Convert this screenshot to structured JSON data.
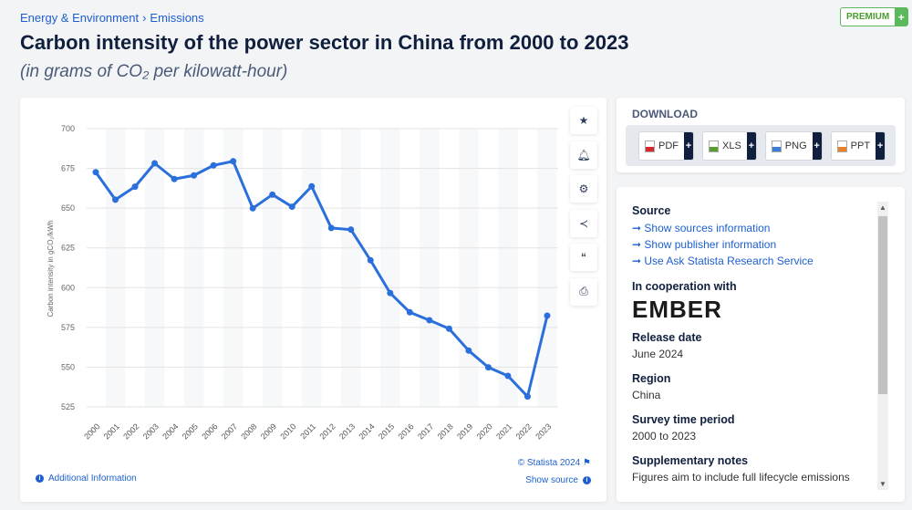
{
  "breadcrumb": [
    "Energy & Environment",
    "Emissions"
  ],
  "premium": {
    "label": "PREMIUM",
    "plus": "+"
  },
  "title": "Carbon intensity of the power sector in China from 2000 to 2023",
  "subtitle": "(in grams of CO₂ per kilowatt-hour)",
  "tools": [
    "star-icon",
    "bell-icon",
    "gear-icon",
    "share-icon",
    "quote-icon",
    "print-icon"
  ],
  "footer": {
    "additional": "Additional Information",
    "copyright": "© Statista 2024",
    "show_source": "Show source"
  },
  "download": {
    "heading": "DOWNLOAD",
    "buttons": [
      {
        "label": "PDF",
        "color": "#d9272e"
      },
      {
        "label": "XLS",
        "color": "#5a9e2f"
      },
      {
        "label": "PNG",
        "color": "#3b7dd8"
      },
      {
        "label": "PPT",
        "color": "#e8822a"
      }
    ]
  },
  "source": {
    "heading": "Source",
    "links": [
      "Show sources information",
      "Show publisher information",
      "Use Ask Statista Research Service"
    ],
    "cooperation_heading": "In cooperation with",
    "cooperation_logo": "EMBER",
    "release_heading": "Release date",
    "release": "June 2024",
    "region_heading": "Region",
    "region": "China",
    "period_heading": "Survey time period",
    "period": "2000 to 2023",
    "notes_heading": "Supplementary notes",
    "notes": "Figures aim to include full lifecycle emissions"
  },
  "chart_data": {
    "type": "line",
    "title": "",
    "xlabel": "",
    "ylabel": "Carbon intensity in gCO₂/kWh",
    "categories": [
      "2000",
      "2001",
      "2002",
      "2003",
      "2004",
      "2005",
      "2006",
      "2007",
      "2008",
      "2009",
      "2010",
      "2011",
      "2012",
      "2013",
      "2014",
      "2015",
      "2016",
      "2017",
      "2018",
      "2019",
      "2020",
      "2021",
      "2022",
      "2023"
    ],
    "values": [
      672.6,
      655.3,
      663.5,
      678.2,
      668.3,
      670.6,
      676.9,
      679.5,
      649.9,
      658.5,
      650.9,
      663.7,
      637.5,
      636.5,
      617.2,
      596.6,
      584.5,
      579.5,
      574.2,
      560.4,
      549.9,
      544.5,
      531.5,
      582.4
    ],
    "yticks": [
      525,
      550,
      575,
      600,
      625,
      650,
      675,
      700
    ],
    "ylim": [
      525,
      700
    ],
    "grid": true,
    "color": "#2a6fdb"
  }
}
